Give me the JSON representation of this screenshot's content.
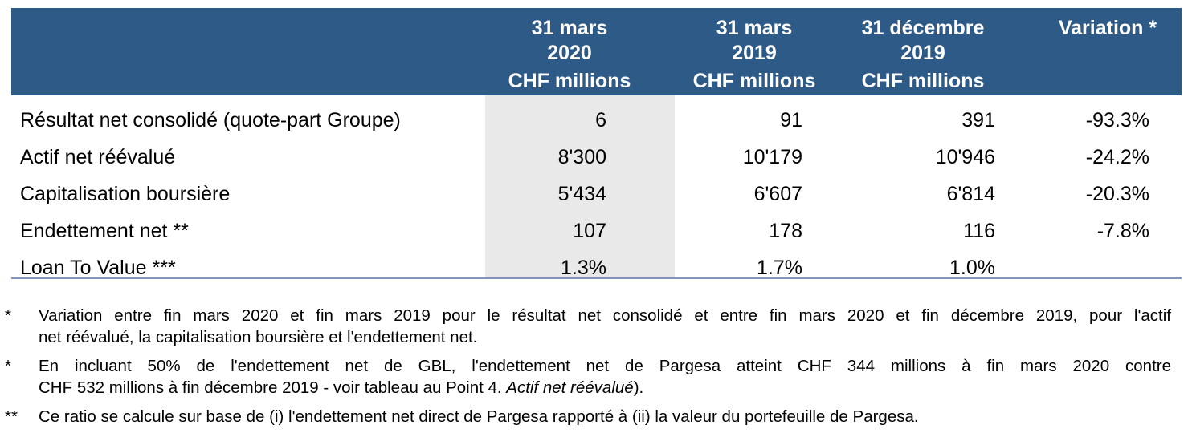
{
  "table": {
    "columns": [
      {
        "line1": "31 mars",
        "line2": "2020",
        "unit": "CHF millions"
      },
      {
        "line1": "31 mars",
        "line2": "2019",
        "unit": "CHF millions"
      },
      {
        "line1": "31 décembre",
        "line2": "2019",
        "unit": "CHF millions"
      },
      {
        "line1": "Variation *",
        "line2": "",
        "unit": ""
      }
    ],
    "rows": [
      {
        "label": "Résultat net consolidé (quote-part Groupe)",
        "values": [
          "6",
          "91",
          "391",
          "-93.3%"
        ]
      },
      {
        "label": "Actif net réévalué",
        "values": [
          "8'300",
          "10'179",
          "10'946",
          "-24.2%"
        ]
      },
      {
        "label": "Capitalisation boursière",
        "values": [
          "5'434",
          "6'607",
          "6'814",
          "-20.3%"
        ]
      },
      {
        "label": "Endettement net **",
        "values": [
          "107",
          "178",
          "116",
          "-7.8%"
        ]
      },
      {
        "label": "Loan To Value ***",
        "values": [
          "1.3%",
          "1.7%",
          "1.0%",
          ""
        ]
      }
    ]
  },
  "notes": [
    {
      "mark": "*",
      "line1": "Variation entre fin mars 2020 et fin mars 2019 pour le résultat net consolidé et entre fin mars 2020 et fin décembre 2019, pour l'actif",
      "line2": "net réévalué, la capitalisation boursière et l'endettement net."
    },
    {
      "mark": "*",
      "line1": "En incluant 50% de l'endettement net de GBL, l'endettement net de Pargesa atteint CHF 344 millions à fin mars 2020 contre",
      "line2_plain": "CHF 532 millions à fin décembre 2019 - voir tableau au Point 4. ",
      "line2_italic": "Actif net réévalué",
      "line2_end": ")."
    },
    {
      "mark": "**",
      "line1": "Ce ratio se calcule sur base de (i) l'endettement net direct de Pargesa rapporté à (ii) la valeur du portefeuille de Pargesa."
    }
  ]
}
